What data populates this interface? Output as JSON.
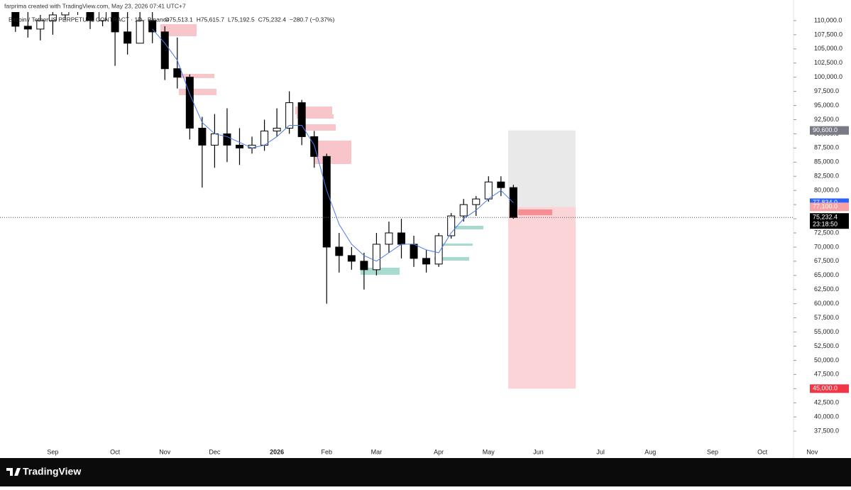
{
  "header": {
    "credit": "farprima created with TradingView.com, May 23, 2026 07:41 UTC+7",
    "symbol": "Bitcoin / TetherUS PERPETUAL CONTRACT · 1D · Binance",
    "ohlc": [
      "O75,513.1",
      "H75,615.7",
      "L75,192.5",
      "C75,232.4",
      "−280.7 (−0.37%)"
    ]
  },
  "brand": "TradingView",
  "chart_data": {
    "type": "candlestick",
    "categories": [
      null,
      null,
      null,
      "Sep",
      null,
      null,
      null,
      null,
      "Oct",
      null,
      null,
      null,
      "Nov",
      null,
      null,
      null,
      "Dec",
      null,
      null,
      null,
      null,
      "2026",
      null,
      null,
      null,
      "Feb",
      null,
      null,
      null,
      "Mar",
      null,
      null,
      null,
      null,
      "Apr",
      null,
      null,
      null,
      "May",
      null,
      null,
      null,
      "Jun",
      null,
      null,
      null,
      null,
      "Jul",
      null,
      null,
      null,
      "Aug",
      null,
      null,
      null,
      null,
      "Sep",
      null,
      null,
      null,
      "Oct",
      null,
      null,
      null,
      "Nov"
    ],
    "open": [
      112000,
      109000,
      108500,
      110000,
      111000,
      113000,
      112000,
      110000,
      114000,
      108000,
      106000,
      110000,
      108000,
      101500,
      100000,
      91000,
      88000,
      90000,
      88000,
      87500,
      88000,
      90500,
      91000,
      95500,
      89500,
      86000,
      70000,
      68500,
      67500,
      66000,
      70500,
      72500,
      70500,
      68000,
      67000,
      72000,
      75500,
      77500,
      78500,
      81500,
      80500,
      null,
      null,
      null,
      null,
      null,
      null,
      null,
      null,
      null,
      null,
      null,
      null,
      null,
      null,
      null,
      null,
      null,
      null,
      null,
      null,
      null,
      null,
      null,
      null
    ],
    "high": [
      114000,
      112000,
      111000,
      113000,
      114000,
      115000,
      113000,
      116000,
      116000,
      112000,
      112000,
      112000,
      109000,
      107000,
      100500,
      93000,
      93500,
      94500,
      91000,
      89500,
      92500,
      94500,
      97500,
      96000,
      90500,
      86500,
      72500,
      70000,
      69000,
      72500,
      74500,
      75000,
      72000,
      69500,
      72500,
      76000,
      78500,
      79000,
      82500,
      82500,
      81000,
      null,
      null,
      null,
      null,
      null,
      null,
      null,
      null,
      null,
      null,
      null,
      null,
      null,
      null,
      null,
      null,
      null,
      null,
      null,
      null,
      null,
      null,
      null,
      null
    ],
    "low": [
      108000,
      107000,
      106500,
      107500,
      110000,
      111000,
      108500,
      109000,
      102000,
      104000,
      106000,
      106000,
      99500,
      98000,
      89000,
      80500,
      84000,
      85000,
      84500,
      86500,
      87000,
      89500,
      90000,
      88000,
      84000,
      60000,
      65500,
      66000,
      62500,
      65000,
      69000,
      68000,
      66500,
      65500,
      66500,
      71500,
      74500,
      75500,
      78000,
      79000,
      75000,
      null,
      null,
      null,
      null,
      null,
      null,
      null,
      null,
      null,
      null,
      null,
      null,
      null,
      null,
      null,
      null,
      null,
      null,
      null,
      null,
      null,
      null,
      null,
      null
    ],
    "close": [
      109000,
      108500,
      110000,
      111000,
      113000,
      112000,
      110000,
      114000,
      108000,
      106000,
      110000,
      108000,
      101500,
      100000,
      91000,
      88000,
      90000,
      88000,
      87500,
      88000,
      90500,
      91000,
      95500,
      89500,
      86000,
      70000,
      68500,
      67500,
      66000,
      70500,
      72500,
      70500,
      68000,
      67000,
      72000,
      75500,
      77500,
      78500,
      81500,
      80500,
      75232.4,
      null,
      null,
      null,
      null,
      null,
      null,
      null,
      null,
      null,
      null,
      null,
      null,
      null,
      null,
      null,
      null,
      null,
      null,
      null,
      null,
      null,
      null,
      null,
      null
    ],
    "up_color": "#ffffff",
    "down_color": "#000000",
    "wick_color": "#000000",
    "overlay": {
      "color": "#4a7cf0",
      "values": [
        null,
        null,
        null,
        null,
        null,
        null,
        null,
        null,
        null,
        null,
        null,
        108500,
        106000,
        103000,
        97000,
        92000,
        90000,
        89500,
        88500,
        87500,
        88000,
        89500,
        91500,
        91500,
        88000,
        80000,
        74000,
        70500,
        68500,
        67500,
        69000,
        70500,
        70500,
        69500,
        69000,
        72500,
        75000,
        76500,
        78500,
        80000,
        77834,
        null,
        null,
        null,
        null,
        null,
        null,
        null,
        null,
        null,
        null,
        null,
        null,
        null,
        null,
        null,
        null,
        null,
        null,
        null,
        null,
        null,
        null,
        null,
        null
      ]
    },
    "ylim": [
      35000,
      111500
    ],
    "yticks": [
      {
        "value": 37500,
        "label": "37,500.0"
      },
      {
        "value": 40000,
        "label": "40,000.0"
      },
      {
        "value": 42500,
        "label": "42,500.0"
      },
      {
        "value": 45000,
        "label": "45,000.0"
      },
      {
        "value": 47500,
        "label": "47,500.0"
      },
      {
        "value": 50000,
        "label": "50,000.0"
      },
      {
        "value": 52500,
        "label": "52,500.0"
      },
      {
        "value": 55000,
        "label": "55,000.0"
      },
      {
        "value": 57500,
        "label": "57,500.0"
      },
      {
        "value": 60000,
        "label": "60,000.0"
      },
      {
        "value": 62500,
        "label": "62,500.0"
      },
      {
        "value": 65000,
        "label": "65,000.0"
      },
      {
        "value": 67500,
        "label": "67,500.0"
      },
      {
        "value": 70000,
        "label": "70,000.0"
      },
      {
        "value": 72500,
        "label": "72,500.0"
      },
      {
        "value": 75000,
        "label": "75,000.0"
      },
      {
        "value": 77500,
        "label": "77,500.0"
      },
      {
        "value": 80000,
        "label": "80,000.0"
      },
      {
        "value": 82500,
        "label": "82,500.0"
      },
      {
        "value": 85000,
        "label": "85,000.0"
      },
      {
        "value": 87500,
        "label": "87,500.0"
      },
      {
        "value": 90000,
        "label": "90,000.0"
      },
      {
        "value": 92500,
        "label": "92,500.0"
      },
      {
        "value": 95000,
        "label": "95,000.0"
      },
      {
        "value": 97500,
        "label": "97,500.0"
      },
      {
        "value": 100000,
        "label": "100,000.0"
      },
      {
        "value": 102500,
        "label": "102,500.0"
      },
      {
        "value": 105000,
        "label": "105,000.0"
      },
      {
        "value": 107500,
        "label": "107,500.0"
      },
      {
        "value": 110000,
        "label": "110,000.0"
      }
    ],
    "price_tags": [
      {
        "value": 90600,
        "label": "90,600.0",
        "color": "#787b86"
      },
      {
        "value": 77834,
        "label": "77,834.0",
        "color": "#2962ff"
      },
      {
        "value": 77100,
        "label": "77,100.0",
        "color": "#f7a1a5"
      },
      {
        "value": 75232.4,
        "label": "75,232.4",
        "color": "#000000"
      },
      {
        "value": 45000,
        "label": "45,000.0",
        "color": "#f23645"
      }
    ],
    "countdown": "23:18:50"
  }
}
